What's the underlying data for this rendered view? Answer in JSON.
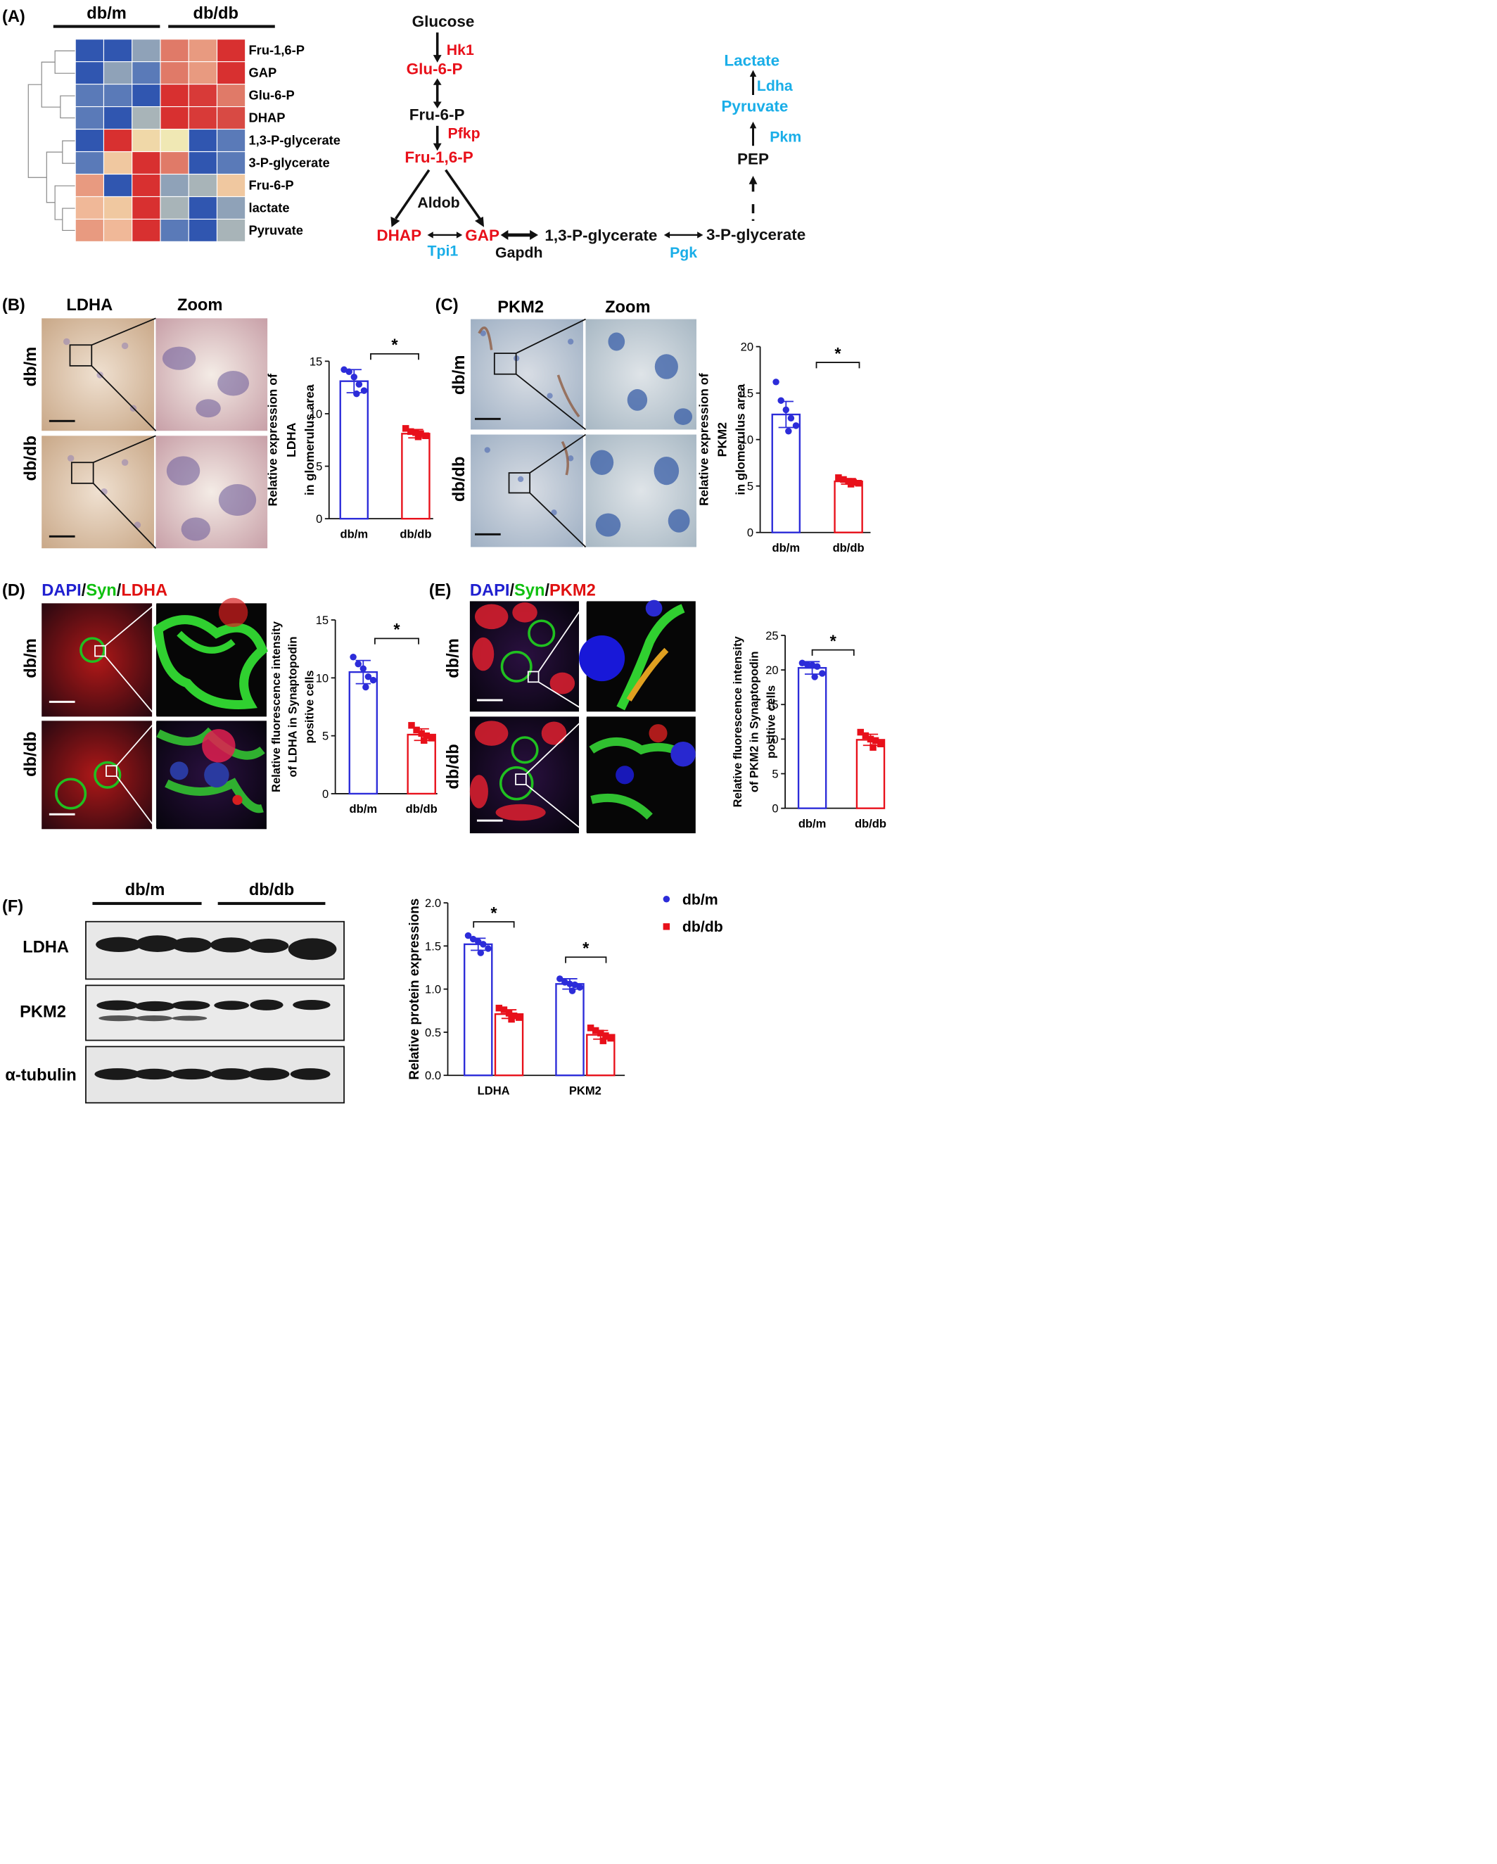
{
  "panel_labels": {
    "A": "(A)",
    "B": "(B)",
    "C": "(C)",
    "D": "(D)",
    "E": "(E)",
    "F": "(F)"
  },
  "colors": {
    "blue": "#2c2cd9",
    "red": "#e8101a",
    "cyan": "#1aaee8",
    "heat_high": "#d83030",
    "heat_low": "#3056b0"
  },
  "heatmap": {
    "groups": [
      "db/m",
      "db/db"
    ],
    "rows": [
      "Fru-1,6-P",
      "GAP",
      "Glu-6-P",
      "DHAP",
      "1,3-P-glycerate",
      "3-P-glycerate",
      "Fru-6-P",
      "lactate",
      "Pyruvate"
    ],
    "cells": [
      [
        "#3056b0",
        "#3056b0",
        "#8fa2b8",
        "#e07a68",
        "#e89a80",
        "#d83030"
      ],
      [
        "#3056b0",
        "#8fa2b8",
        "#5a7ab8",
        "#e07a68",
        "#e89a80",
        "#d83030"
      ],
      [
        "#5a7ab8",
        "#5a7ab8",
        "#3056b0",
        "#d83030",
        "#d83a38",
        "#e07a68"
      ],
      [
        "#5a7ab8",
        "#3056b0",
        "#a8b4b8",
        "#d83030",
        "#d83a38",
        "#d84a44"
      ],
      [
        "#3056b0",
        "#d83030",
        "#f0d8a8",
        "#f0e8b4",
        "#3056b0",
        "#5a7ab8"
      ],
      [
        "#5a7ab8",
        "#f0c8a0",
        "#d83030",
        "#e07a68",
        "#3056b0",
        "#5a7ab8"
      ],
      [
        "#e89a80",
        "#3056b0",
        "#d83030",
        "#8fa2b8",
        "#a8b4b8",
        "#f0c8a0"
      ],
      [
        "#f0b898",
        "#f0c8a0",
        "#d83030",
        "#a8b4b8",
        "#3056b0",
        "#8fa2b8"
      ],
      [
        "#e89a80",
        "#f0b898",
        "#d83030",
        "#5a7ab8",
        "#3056b0",
        "#a8b4b8"
      ]
    ]
  },
  "pathway": {
    "glucose": "Glucose",
    "hk1": "Hk1",
    "glu6p": "Glu-6-P",
    "fru6p": "Fru-6-P",
    "pfkp": "Pfkp",
    "fru16p": "Fru-1,6-P",
    "aldob": "Aldob",
    "dhap": "DHAP",
    "gap": "GAP",
    "tpi1": "Tpi1",
    "gapdh": "Gapdh",
    "p13g": "1,3-P-glycerate",
    "pgk": "Pgk",
    "p3g": "3-P-glycerate",
    "pep": "PEP",
    "pkm": "Pkm",
    "pyruvate": "Pyruvate",
    "ldha": "Ldha",
    "lactate": "Lactate"
  },
  "panel_b": {
    "stain": "LDHA",
    "zoom": "Zoom",
    "rows": [
      "db/m",
      "db/db"
    ]
  },
  "panel_c": {
    "stain": "PKM2",
    "zoom": "Zoom",
    "rows": [
      "db/m",
      "db/db"
    ]
  },
  "panel_d": {
    "dapi": "DAPI",
    "syn": "Syn",
    "target": "LDHA",
    "slash": "/",
    "rows": [
      "db/m",
      "db/db"
    ]
  },
  "panel_e": {
    "dapi": "DAPI",
    "syn": "Syn",
    "target": "PKM2",
    "slash": "/",
    "rows": [
      "db/m",
      "db/db"
    ]
  },
  "panel_f": {
    "groups": [
      "db/m",
      "db/db"
    ],
    "blots": [
      "LDHA",
      "PKM2",
      "α-tubulin"
    ]
  },
  "chart_data": [
    {
      "id": "B",
      "type": "bar",
      "categories": [
        "db/m",
        "db/db"
      ],
      "values": [
        13.1,
        8.1
      ],
      "errors": [
        1.1,
        0.4
      ],
      "points": [
        [
          14.2,
          14.0,
          13.5,
          12.8,
          12.2,
          11.9
        ],
        [
          8.6,
          8.3,
          8.2,
          8.1,
          7.9,
          7.8
        ]
      ],
      "ylabel": [
        "Relative expression of",
        "LDHA",
        "in glomerulus area"
      ],
      "ylim": [
        0,
        15
      ],
      "yticks": [
        0,
        5,
        10,
        15
      ],
      "significance": "*"
    },
    {
      "id": "C",
      "type": "bar",
      "categories": [
        "db/m",
        "db/db"
      ],
      "values": [
        12.7,
        5.5
      ],
      "errors": [
        1.4,
        0.3
      ],
      "points": [
        [
          16.2,
          14.2,
          13.2,
          12.3,
          11.5,
          10.9
        ],
        [
          5.9,
          5.7,
          5.5,
          5.4,
          5.3,
          5.2
        ]
      ],
      "ylabel": [
        "Relative expression of",
        "PKM2",
        "in glomerulus area"
      ],
      "ylim": [
        0,
        20
      ],
      "yticks": [
        0,
        5,
        10,
        15,
        20
      ],
      "significance": "*"
    },
    {
      "id": "D",
      "type": "bar",
      "categories": [
        "db/m",
        "db/db"
      ],
      "values": [
        10.5,
        5.1
      ],
      "errors": [
        1.0,
        0.5
      ],
      "points": [
        [
          11.8,
          11.2,
          10.8,
          10.1,
          9.8,
          9.2
        ],
        [
          5.9,
          5.5,
          5.2,
          5.0,
          4.8,
          4.6
        ]
      ],
      "ylabel": [
        "Relative fluorescence intensity",
        "of LDHA in Synaptopodin",
        "positive cells"
      ],
      "ylim": [
        0,
        15
      ],
      "yticks": [
        0,
        5,
        10,
        15
      ],
      "significance": "*"
    },
    {
      "id": "E",
      "type": "bar",
      "categories": [
        "db/m",
        "db/db"
      ],
      "values": [
        20.3,
        9.9
      ],
      "errors": [
        0.9,
        0.8
      ],
      "points": [
        [
          21.0,
          20.8,
          20.7,
          20.5,
          19.5,
          19.0
        ],
        [
          11.0,
          10.5,
          10.0,
          9.8,
          9.3,
          8.8
        ]
      ],
      "ylabel": [
        "Relative fluorescence intensity",
        "of PKM2 in Synaptopodin",
        "positive cells"
      ],
      "ylim": [
        0,
        25
      ],
      "yticks": [
        0,
        5,
        10,
        15,
        20,
        25
      ],
      "significance": "*"
    },
    {
      "id": "F",
      "type": "bar",
      "categories": [
        "LDHA",
        "PKM2"
      ],
      "series": [
        {
          "name": "db/m",
          "values": [
            1.52,
            1.06
          ],
          "errors": [
            0.07,
            0.06
          ],
          "points": [
            [
              1.62,
              1.58,
              1.55,
              1.52,
              1.47,
              1.42
            ],
            [
              1.12,
              1.08,
              1.06,
              1.05,
              1.02,
              0.98
            ]
          ]
        },
        {
          "name": "db/db",
          "values": [
            0.71,
            0.47
          ],
          "errors": [
            0.05,
            0.05
          ],
          "points": [
            [
              0.78,
              0.76,
              0.72,
              0.69,
              0.67,
              0.65
            ],
            [
              0.55,
              0.52,
              0.49,
              0.46,
              0.43,
              0.4
            ]
          ]
        }
      ],
      "ylabel": [
        "Relative protein expressions"
      ],
      "ylim": [
        0,
        2.0
      ],
      "yticks": [
        "0.0",
        "0.5",
        "1.0",
        "1.5",
        "2.0"
      ],
      "significance": [
        "*",
        "*"
      ],
      "legend": "right"
    }
  ]
}
